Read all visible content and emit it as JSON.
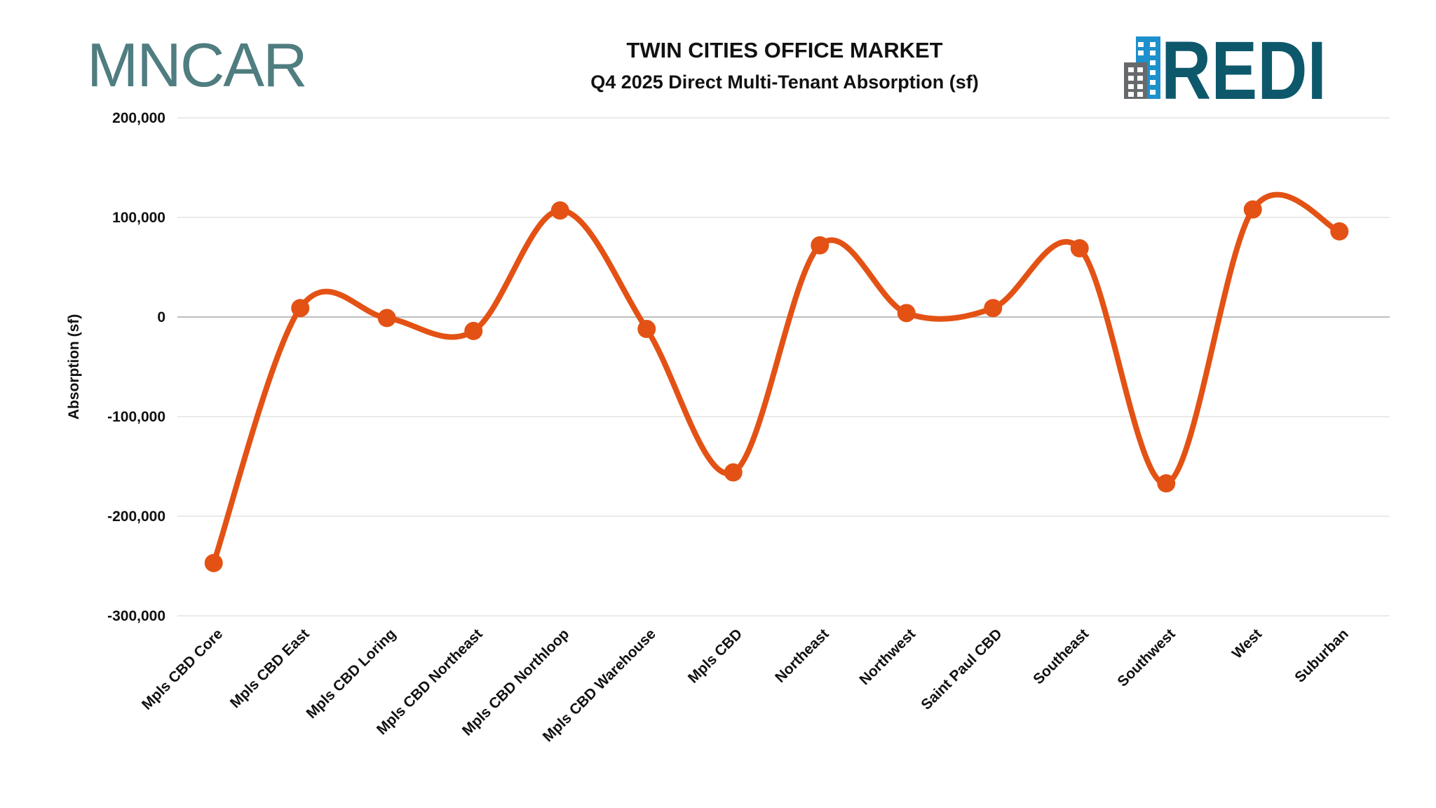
{
  "logos": {
    "left": "MNCAR",
    "right": "REDI"
  },
  "chart_data": {
    "type": "line",
    "title": "TWIN CITIES OFFICE MARKET",
    "subtitle": "Q4 2025 Direct Multi-Tenant Absorption (sf)",
    "xlabel": "",
    "ylabel": "Absorption (sf)",
    "ylim": [
      -300000,
      200000
    ],
    "yticks": [
      200000,
      100000,
      0,
      -100000,
      -200000,
      -300000
    ],
    "ytick_labels": [
      "200,000",
      "100,000",
      "0",
      "-100,000",
      "-200,000",
      "-300,000"
    ],
    "grid": true,
    "smooth": true,
    "color": "#e35214",
    "categories": [
      "Mpls CBD Core",
      "Mpls CBD East",
      "Mpls CBD Loring",
      "Mpls CBD Northeast",
      "Mpls CBD Northloop",
      "Mpls CBD Warehouse",
      "Mpls CBD",
      "Northeast",
      "Northwest",
      "Saint Paul CBD",
      "Southeast",
      "Southwest",
      "West",
      "Suburban"
    ],
    "series": [
      {
        "name": "Absorption",
        "values": [
          -247000,
          9000,
          -1000,
          -14000,
          107000,
          -12000,
          -156000,
          72000,
          4000,
          9000,
          69000,
          -167000,
          108000,
          86000
        ]
      }
    ]
  }
}
